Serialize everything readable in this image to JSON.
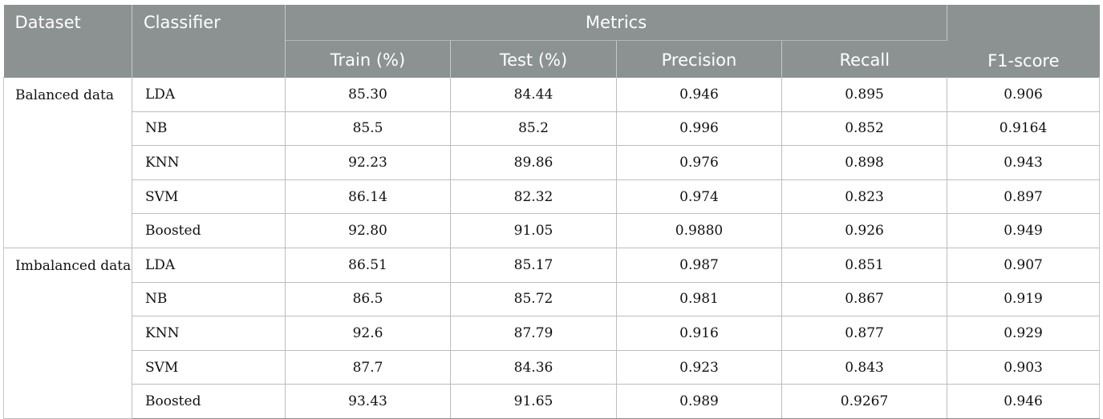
{
  "table": {
    "headers": {
      "dataset": "Dataset",
      "classifier": "Classifier",
      "metrics": "Metrics",
      "train": "Train (%)",
      "test": "Test (%)",
      "precision": "Precision",
      "recall": "Recall",
      "f1": "F1-score"
    },
    "groups": [
      {
        "label": "Balanced data",
        "rows": [
          {
            "classifier": "LDA",
            "train": "85.30",
            "test": "84.44",
            "precision": "0.946",
            "recall": "0.895",
            "f1": "0.906"
          },
          {
            "classifier": "NB",
            "train": "85.5",
            "test": "85.2",
            "precision": "0.996",
            "recall": "0.852",
            "f1": "0.9164"
          },
          {
            "classifier": "KNN",
            "train": "92.23",
            "test": "89.86",
            "precision": "0.976",
            "recall": "0.898",
            "f1": "0.943"
          },
          {
            "classifier": "SVM",
            "train": "86.14",
            "test": "82.32",
            "precision": "0.974",
            "recall": "0.823",
            "f1": "0.897"
          },
          {
            "classifier": "Boosted",
            "train": "92.80",
            "test": "91.05",
            "precision": "0.9880",
            "recall": "0.926",
            "f1": "0.949"
          }
        ]
      },
      {
        "label": "Imbalanced data",
        "rows": [
          {
            "classifier": "LDA",
            "train": "86.51",
            "test": "85.17",
            "precision": "0.987",
            "recall": "0.851",
            "f1": "0.907"
          },
          {
            "classifier": "NB",
            "train": "86.5",
            "test": "85.72",
            "precision": "0.981",
            "recall": "0.867",
            "f1": "0.919"
          },
          {
            "classifier": "KNN",
            "train": "92.6",
            "test": "87.79",
            "precision": "0.916",
            "recall": "0.877",
            "f1": "0.929"
          },
          {
            "classifier": "SVM",
            "train": "87.7",
            "test": "84.36",
            "precision": "0.923",
            "recall": "0.843",
            "f1": "0.903"
          },
          {
            "classifier": "Boosted",
            "train": "93.43",
            "test": "91.65",
            "precision": "0.989",
            "recall": "0.9267",
            "f1": "0.946"
          }
        ]
      }
    ]
  }
}
